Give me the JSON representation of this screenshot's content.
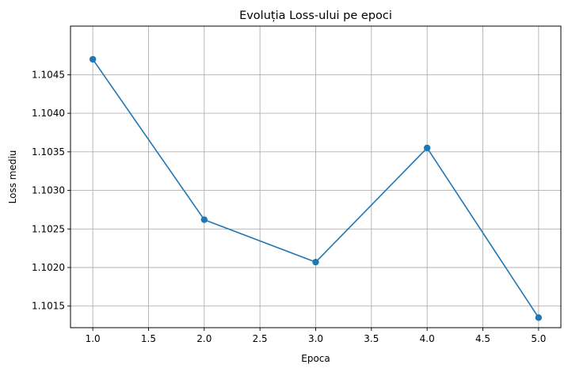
{
  "chart_data": {
    "type": "line",
    "title": "Evoluția Loss-ului pe epoci",
    "xlabel": "Epoca",
    "ylabel": "Loss mediu",
    "x": [
      1.0,
      2.0,
      3.0,
      4.0,
      5.0
    ],
    "series": [
      {
        "values": [
          1.1047,
          1.10262,
          1.10207,
          1.10355,
          1.10135
        ],
        "color": "#1f77b4",
        "marker": "circle"
      }
    ],
    "xlim": [
      0.8,
      5.2
    ],
    "ylim": [
      1.10122,
      1.10513
    ],
    "xticks": [
      1.0,
      1.5,
      2.0,
      2.5,
      3.0,
      3.5,
      4.0,
      4.5,
      5.0
    ],
    "xtick_labels": [
      "1.0",
      "1.5",
      "2.0",
      "2.5",
      "3.0",
      "3.5",
      "4.0",
      "4.5",
      "5.0"
    ],
    "yticks": [
      1.1015,
      1.102,
      1.1025,
      1.103,
      1.1035,
      1.104,
      1.1045
    ],
    "ytick_labels": [
      "1.1015",
      "1.1020",
      "1.1025",
      "1.1030",
      "1.1035",
      "1.1040",
      "1.1045"
    ],
    "grid": true,
    "legend": "none"
  }
}
